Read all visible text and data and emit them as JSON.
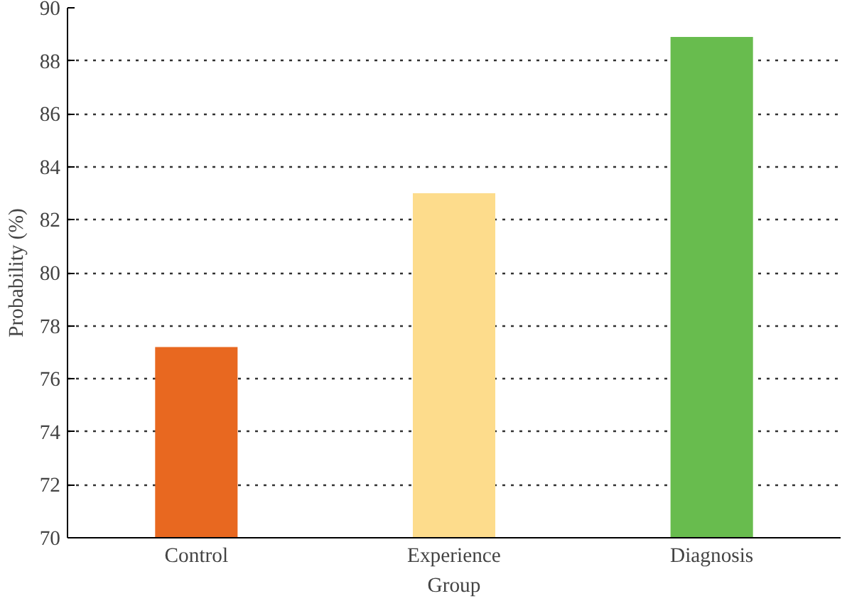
{
  "chart_data": {
    "type": "bar",
    "xlabel": "Group",
    "ylabel": "Probability (%)",
    "categories": [
      "Control",
      "Experience",
      "Diagnosis"
    ],
    "values": [
      77.2,
      83.0,
      88.9
    ],
    "colors": [
      "#e86820",
      "#fddc8c",
      "#68bc4e"
    ],
    "ylim": [
      70,
      90
    ],
    "yticks": [
      70,
      72,
      74,
      76,
      78,
      80,
      82,
      84,
      86,
      88,
      90
    ],
    "grid": "y"
  }
}
